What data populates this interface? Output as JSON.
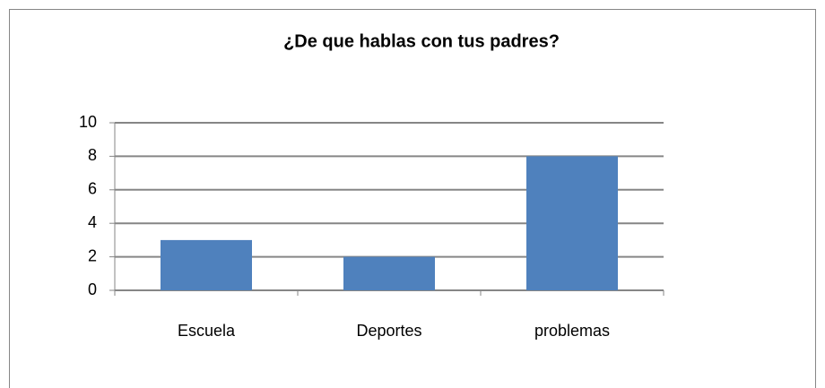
{
  "chart_data": {
    "type": "bar",
    "title": "¿De que hablas con tus padres?",
    "categories": [
      "Escuela",
      "Deportes",
      "problemas"
    ],
    "values": [
      3,
      2,
      8
    ],
    "color": "#4f81bd",
    "ylim": [
      0,
      10
    ],
    "yticks": [
      0,
      2,
      4,
      6,
      8,
      10
    ],
    "grid": true
  }
}
